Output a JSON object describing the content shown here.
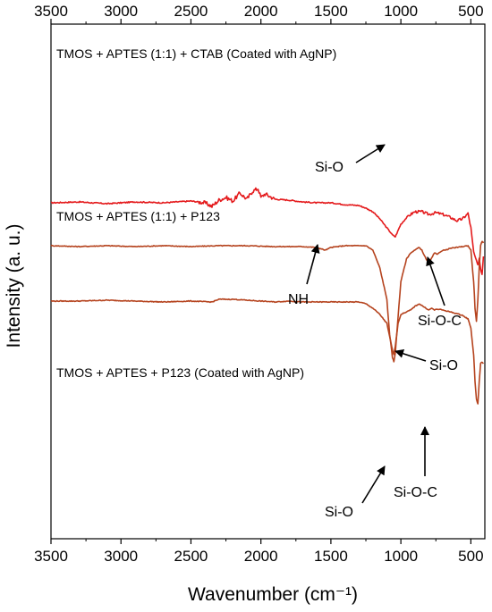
{
  "chart_data": {
    "type": "line",
    "xlabel": "Wavenumber (cm⁻¹)",
    "ylabel": "Intensity (a. u.)",
    "xlim": [
      3500,
      400
    ],
    "x_reversed": true,
    "x_ticks": [
      3500,
      3000,
      2500,
      2000,
      1500,
      1000,
      500
    ],
    "x_ticks_top": [
      3500,
      3000,
      2500,
      2000,
      1500,
      1000,
      500
    ],
    "grid": false,
    "series": [
      {
        "name": "TMOS + APTES (1:1) + CTAB (Coated with AgNP)",
        "color": "#e41a1c",
        "offset": 88,
        "points": [
          [
            3500,
            0
          ],
          [
            3300,
            1
          ],
          [
            3100,
            -1
          ],
          [
            2900,
            1
          ],
          [
            2700,
            0
          ],
          [
            2500,
            2
          ],
          [
            2400,
            0
          ],
          [
            2350,
            -4
          ],
          [
            2300,
            3
          ],
          [
            2250,
            6
          ],
          [
            2200,
            2
          ],
          [
            2150,
            11
          ],
          [
            2100,
            4
          ],
          [
            2060,
            13
          ],
          [
            2020,
            16
          ],
          [
            2000,
            6
          ],
          [
            1970,
            10
          ],
          [
            1900,
            4
          ],
          [
            1800,
            3
          ],
          [
            1700,
            1
          ],
          [
            1600,
            0
          ],
          [
            1500,
            0
          ],
          [
            1400,
            -2
          ],
          [
            1300,
            -3
          ],
          [
            1250,
            -6
          ],
          [
            1200,
            -10
          ],
          [
            1150,
            -18
          ],
          [
            1100,
            -28
          ],
          [
            1060,
            -36
          ],
          [
            1040,
            -38
          ],
          [
            1000,
            -24
          ],
          [
            950,
            -15
          ],
          [
            900,
            -10
          ],
          [
            850,
            -10
          ],
          [
            800,
            -13
          ],
          [
            750,
            -11
          ],
          [
            700,
            -13
          ],
          [
            650,
            -16
          ],
          [
            600,
            -20
          ],
          [
            560,
            -18
          ],
          [
            520,
            -12
          ],
          [
            500,
            -28
          ],
          [
            480,
            -55
          ],
          [
            460,
            -65
          ],
          [
            450,
            -70
          ],
          [
            440,
            -62
          ],
          [
            430,
            -74
          ],
          [
            420,
            -80
          ],
          [
            410,
            -60
          ]
        ],
        "annotations": [
          {
            "label": "Si-O",
            "arrow_to": 1070
          }
        ]
      },
      {
        "name": "TMOS + APTES (1:1) + P123",
        "color": "#b5431e",
        "offset": 40,
        "points": [
          [
            3500,
            0
          ],
          [
            3300,
            -1
          ],
          [
            3100,
            0
          ],
          [
            2900,
            -1
          ],
          [
            2700,
            0
          ],
          [
            2500,
            -1
          ],
          [
            2300,
            0
          ],
          [
            2100,
            0
          ],
          [
            1900,
            -1
          ],
          [
            1700,
            -1
          ],
          [
            1600,
            -2
          ],
          [
            1560,
            -4
          ],
          [
            1540,
            -5
          ],
          [
            1500,
            -2
          ],
          [
            1400,
            0
          ],
          [
            1300,
            0
          ],
          [
            1250,
            0
          ],
          [
            1200,
            -5
          ],
          [
            1150,
            -25
          ],
          [
            1100,
            -60
          ],
          [
            1080,
            -100
          ],
          [
            1060,
            -125
          ],
          [
            1050,
            -130
          ],
          [
            1040,
            -120
          ],
          [
            1020,
            -80
          ],
          [
            1000,
            -40
          ],
          [
            960,
            -15
          ],
          [
            930,
            -8
          ],
          [
            900,
            -5
          ],
          [
            870,
            -2
          ],
          [
            850,
            -5
          ],
          [
            820,
            -15
          ],
          [
            800,
            -20
          ],
          [
            780,
            -14
          ],
          [
            760,
            -8
          ],
          [
            740,
            -10
          ],
          [
            720,
            -7
          ],
          [
            700,
            -5
          ],
          [
            680,
            -5
          ],
          [
            650,
            -3
          ],
          [
            600,
            -2
          ],
          [
            560,
            -1
          ],
          [
            520,
            0
          ],
          [
            500,
            -5
          ],
          [
            480,
            -40
          ],
          [
            470,
            -70
          ],
          [
            460,
            -85
          ],
          [
            450,
            -60
          ],
          [
            440,
            -25
          ],
          [
            430,
            0
          ],
          [
            420,
            5
          ],
          [
            410,
            3
          ]
        ],
        "annotations": [
          {
            "label": "NH",
            "arrow_to": 1560
          },
          {
            "label": "Si-O-C",
            "arrow_to": 800
          },
          {
            "label": "Si-O",
            "arrow_to": 1040
          }
        ]
      },
      {
        "name": "TMOS + APTES + P123 (Coated with AgNP)",
        "color": "#b5431e",
        "offset": -22,
        "points": [
          [
            3500,
            0
          ],
          [
            3300,
            0
          ],
          [
            3100,
            1
          ],
          [
            2900,
            0
          ],
          [
            2700,
            -1
          ],
          [
            2500,
            0
          ],
          [
            2350,
            -1
          ],
          [
            2300,
            2
          ],
          [
            2200,
            2
          ],
          [
            2100,
            1
          ],
          [
            2000,
            0
          ],
          [
            1900,
            -1
          ],
          [
            1800,
            0
          ],
          [
            1700,
            -1
          ],
          [
            1600,
            -1
          ],
          [
            1500,
            -1
          ],
          [
            1400,
            -1
          ],
          [
            1300,
            -1
          ],
          [
            1250,
            -3
          ],
          [
            1200,
            -8
          ],
          [
            1150,
            -15
          ],
          [
            1100,
            -25
          ],
          [
            1080,
            -40
          ],
          [
            1060,
            -55
          ],
          [
            1050,
            -60
          ],
          [
            1040,
            -50
          ],
          [
            1020,
            -25
          ],
          [
            1000,
            -15
          ],
          [
            960,
            -12
          ],
          [
            930,
            -10
          ],
          [
            900,
            -6
          ],
          [
            870,
            -3
          ],
          [
            850,
            -5
          ],
          [
            820,
            -8
          ],
          [
            800,
            -10
          ],
          [
            780,
            -8
          ],
          [
            760,
            -10
          ],
          [
            740,
            -9
          ],
          [
            700,
            -10
          ],
          [
            650,
            -12
          ],
          [
            600,
            -14
          ],
          [
            560,
            -16
          ],
          [
            520,
            -20
          ],
          [
            500,
            -30
          ],
          [
            480,
            -60
          ],
          [
            470,
            -90
          ],
          [
            460,
            -110
          ],
          [
            450,
            -115
          ],
          [
            440,
            -90
          ],
          [
            430,
            -70
          ],
          [
            420,
            -68
          ],
          [
            410,
            -70
          ]
        ],
        "annotations": [
          {
            "label": "Si-O",
            "arrow_to": 1050
          },
          {
            "label": "Si-O-C",
            "arrow_to": 800
          }
        ]
      }
    ]
  }
}
